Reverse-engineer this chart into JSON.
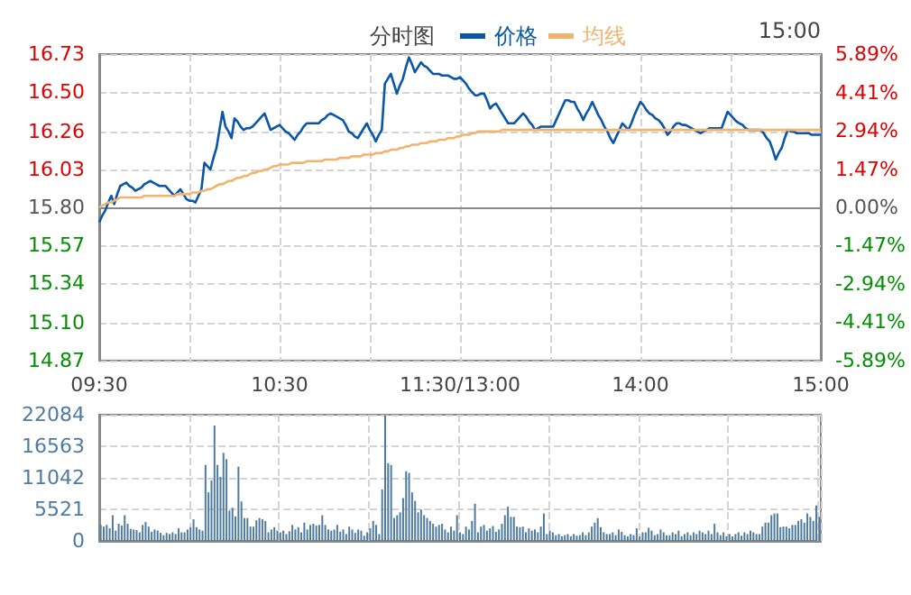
{
  "chart_data": [
    {
      "type": "line",
      "title": "分时图",
      "annotations": [
        "15:00"
      ],
      "legend": "top",
      "grid": true,
      "marker": "none",
      "line_style": "solid",
      "categories": [
        "09:30",
        null,
        null,
        null,
        null,
        null,
        null,
        null,
        null,
        null,
        null,
        null,
        null,
        null,
        null,
        null,
        null,
        null,
        null,
        null,
        null,
        null,
        null,
        null,
        null,
        null,
        null,
        null,
        null,
        null,
        null,
        null,
        null,
        null,
        null,
        null,
        null,
        null,
        null,
        null,
        null,
        null,
        null,
        null,
        null,
        null,
        null,
        null,
        null,
        null,
        null,
        null,
        null,
        null,
        null,
        null,
        null,
        null,
        null,
        null,
        "10:30",
        null,
        null,
        null,
        null,
        null,
        null,
        null,
        null,
        null,
        null,
        null,
        null,
        null,
        null,
        null,
        null,
        null,
        null,
        null,
        null,
        null,
        null,
        null,
        null,
        null,
        null,
        null,
        null,
        null,
        null,
        null,
        null,
        null,
        null,
        null,
        null,
        null,
        null,
        null,
        null,
        null,
        null,
        null,
        null,
        null,
        null,
        null,
        null,
        null,
        null,
        null,
        null,
        null,
        null,
        null,
        null,
        null,
        null,
        null,
        "11:30/13:00",
        null,
        null,
        null,
        null,
        null,
        null,
        null,
        null,
        null,
        null,
        null,
        null,
        null,
        null,
        null,
        null,
        null,
        null,
        null,
        null,
        null,
        null,
        null,
        null,
        null,
        null,
        null,
        null,
        null,
        null,
        null,
        null,
        null,
        null,
        null,
        null,
        null,
        null,
        null,
        null,
        null,
        null,
        null,
        null,
        null,
        null,
        null,
        null,
        null,
        null,
        null,
        null,
        null,
        null,
        null,
        null,
        null,
        null,
        null,
        "14:00",
        null,
        null,
        null,
        null,
        null,
        null,
        null,
        null,
        null,
        null,
        null,
        null,
        null,
        null,
        null,
        null,
        null,
        null,
        null,
        null,
        null,
        null,
        null,
        null,
        null,
        null,
        null,
        null,
        null,
        null,
        null,
        null,
        null,
        null,
        null,
        null,
        null,
        null,
        null,
        null,
        null,
        null,
        null,
        null,
        null,
        null,
        null,
        null,
        null,
        null,
        null,
        null,
        null,
        null,
        null,
        null,
        null,
        null,
        null,
        "15:00"
      ],
      "ylim": [
        14.87,
        16.73
      ],
      "yticks": [
        14.87,
        {
          "value": 15.1,
          "label": "15.10"
        },
        15.34,
        15.57,
        {
          "value": 15.8,
          "label": "15.80"
        },
        16.03,
        16.26,
        {
          "value": 16.5,
          "label": "16.50"
        },
        16.73
      ],
      "y2lim": [
        -5.89,
        5.89
      ],
      "y2ticks": [
        {
          "value": -5.89,
          "label": "-5.89%"
        },
        {
          "value": -4.41,
          "label": "-4.41%"
        },
        {
          "value": -2.94,
          "label": "-2.94%"
        },
        {
          "value": -1.47,
          "label": "-1.47%"
        },
        {
          "value": 0,
          "label": "0.00%"
        },
        {
          "value": 1.47,
          "label": "1.47%"
        },
        {
          "value": 2.94,
          "label": "2.94%"
        },
        {
          "value": 4.41,
          "label": "4.41%"
        },
        {
          "value": 5.89,
          "label": "5.89%"
        }
      ],
      "series": [
        {
          "name": "价格",
          "color": "#0a56a8",
          "values": [
            15.71,
            15.75,
            15.78,
            15.83,
            15.87,
            15.82,
            15.88,
            15.93,
            15.94,
            15.95,
            15.93,
            15.92,
            15.9,
            15.91,
            15.92,
            15.94,
            15.95,
            15.96,
            15.95,
            15.94,
            15.93,
            15.93,
            15.93,
            15.91,
            15.89,
            15.87,
            15.89,
            15.91,
            15.88,
            15.85,
            15.84,
            15.84,
            15.83,
            15.87,
            15.91,
            16.07,
            16.05,
            16.03,
            16.1,
            16.16,
            16.27,
            16.38,
            16.29,
            16.26,
            16.22,
            16.34,
            16.32,
            16.29,
            16.27,
            16.28,
            16.28,
            16.29,
            16.31,
            16.33,
            16.35,
            16.37,
            16.32,
            16.27,
            16.28,
            16.29,
            16.3,
            16.28,
            16.26,
            16.25,
            16.23,
            16.21,
            16.24,
            16.26,
            16.29,
            16.31,
            16.31,
            16.31,
            16.31,
            16.31,
            16.33,
            16.34,
            16.36,
            16.37,
            16.36,
            16.35,
            16.34,
            16.33,
            16.3,
            16.26,
            16.25,
            16.23,
            16.22,
            16.25,
            16.28,
            16.31,
            16.27,
            16.24,
            16.2,
            16.24,
            16.27,
            16.55,
            16.58,
            16.61,
            16.55,
            16.49,
            16.54,
            16.58,
            16.65,
            16.71,
            16.67,
            16.62,
            16.65,
            16.68,
            16.66,
            16.65,
            16.63,
            16.61,
            16.61,
            16.61,
            16.6,
            16.6,
            16.6,
            16.59,
            16.58,
            16.58,
            16.59,
            16.57,
            16.55,
            16.52,
            16.5,
            16.48,
            16.48,
            16.49,
            16.49,
            16.45,
            16.4,
            16.42,
            16.43,
            16.4,
            16.37,
            16.34,
            16.31,
            16.31,
            16.31,
            16.33,
            16.35,
            16.37,
            16.35,
            16.32,
            16.3,
            16.27,
            16.28,
            16.29,
            16.29,
            16.29,
            16.29,
            16.29,
            16.33,
            16.37,
            16.41,
            16.45,
            16.45,
            16.44,
            16.44,
            16.4,
            16.37,
            16.33,
            16.37,
            16.4,
            16.44,
            16.4,
            16.36,
            16.33,
            16.29,
            16.26,
            16.22,
            16.19,
            16.23,
            16.27,
            16.31,
            16.29,
            16.27,
            16.31,
            16.36,
            16.4,
            16.44,
            16.42,
            16.39,
            16.37,
            16.36,
            16.34,
            16.33,
            16.31,
            16.28,
            16.24,
            16.26,
            16.29,
            16.31,
            16.31,
            16.3,
            16.3,
            16.29,
            16.28,
            16.27,
            16.26,
            16.25,
            16.26,
            16.27,
            16.28,
            16.28,
            16.28,
            16.28,
            16.28,
            16.33,
            16.38,
            16.36,
            16.34,
            16.32,
            16.31,
            16.3,
            16.28,
            16.27,
            16.27,
            16.27,
            16.27,
            16.27,
            16.25,
            16.22,
            16.2,
            16.15,
            16.09,
            16.13,
            16.16,
            16.22,
            16.27,
            16.26,
            16.26,
            16.25,
            16.25,
            16.25,
            16.25,
            16.25,
            16.24,
            16.24,
            16.24,
            16.24
          ]
        },
        {
          "name": "均线",
          "color": "#f4b36c",
          "values": [
            15.8,
            15.81,
            15.82,
            15.83,
            15.83,
            15.84,
            15.85,
            15.86,
            15.86,
            15.86,
            15.86,
            15.86,
            15.86,
            15.86,
            15.86,
            15.87,
            15.87,
            15.87,
            15.87,
            15.87,
            15.87,
            15.87,
            15.87,
            15.87,
            15.87,
            15.87,
            15.88,
            15.88,
            15.88,
            15.88,
            15.88,
            15.89,
            15.89,
            15.89,
            15.9,
            15.9,
            15.91,
            15.91,
            15.92,
            15.93,
            15.94,
            15.94,
            15.95,
            15.96,
            15.96,
            15.97,
            15.98,
            15.98,
            15.99,
            15.99,
            16,
            16.01,
            16.01,
            16.02,
            16.02,
            16.03,
            16.03,
            16.04,
            16.05,
            16.05,
            16.06,
            16.06,
            16.06,
            16.06,
            16.07,
            16.07,
            16.07,
            16.07,
            16.07,
            16.08,
            16.08,
            16.08,
            16.08,
            16.08,
            16.08,
            16.09,
            16.09,
            16.09,
            16.09,
            16.09,
            16.1,
            16.1,
            16.1,
            16.1,
            16.11,
            16.11,
            16.11,
            16.11,
            16.12,
            16.12,
            16.12,
            16.12,
            16.13,
            16.13,
            16.13,
            16.14,
            16.14,
            16.15,
            16.15,
            16.15,
            16.16,
            16.16,
            16.17,
            16.17,
            16.18,
            16.18,
            16.18,
            16.19,
            16.19,
            16.19,
            16.2,
            16.2,
            16.2,
            16.21,
            16.21,
            16.21,
            16.22,
            16.22,
            16.22,
            16.23,
            16.23,
            16.24,
            16.24,
            16.24,
            16.25,
            16.25,
            16.26,
            16.26,
            16.26,
            16.26,
            16.26,
            16.26,
            16.26,
            16.26,
            16.27,
            16.27,
            16.27,
            16.27,
            16.27,
            16.27,
            16.27,
            16.27,
            16.27,
            16.27,
            16.27,
            16.27,
            16.27,
            16.27,
            16.27,
            16.27,
            16.27,
            16.27,
            16.27,
            16.27,
            16.27,
            16.27,
            16.27,
            16.27,
            16.27,
            16.27,
            16.27,
            16.27,
            16.27,
            16.27,
            16.27,
            16.27,
            16.27,
            16.27,
            16.27,
            16.27,
            16.27,
            16.27,
            16.27,
            16.27,
            16.27,
            16.27,
            16.27,
            16.27,
            16.27,
            16.27,
            16.27,
            16.27,
            16.27,
            16.27,
            16.27,
            16.27,
            16.27,
            16.27,
            16.27,
            16.27,
            16.27,
            16.27,
            16.27,
            16.27,
            16.27,
            16.27,
            16.27,
            16.27,
            16.27,
            16.27,
            16.27,
            16.27,
            16.27,
            16.27,
            16.27,
            16.27,
            16.27,
            16.27,
            16.27,
            16.27,
            16.27,
            16.27,
            16.27,
            16.27,
            16.27,
            16.27,
            16.27,
            16.27,
            16.27,
            16.27,
            16.27,
            16.27,
            16.27,
            16.27,
            16.27,
            16.27,
            16.27,
            16.27,
            16.27,
            16.27,
            16.27,
            16.27,
            16.27,
            16.27,
            16.27,
            16.27,
            16.27,
            16.27,
            16.27,
            16.27,
            16.27
          ]
        }
      ]
    },
    {
      "type": "bar",
      "color": "#4f7ba0",
      "grid": true,
      "tick_labels": "y",
      "ylim": [
        0,
        22084
      ],
      "yticks": [
        0,
        5521,
        11042,
        16563,
        22084
      ],
      "categories": [
        null,
        null,
        null,
        null,
        null,
        null,
        null,
        null,
        null,
        null,
        null,
        null,
        null,
        null,
        null,
        null,
        null,
        null,
        null,
        null,
        null,
        null,
        null,
        null,
        null,
        null,
        null,
        null,
        null,
        null,
        null,
        null,
        null,
        null,
        null,
        null,
        null,
        null,
        null,
        null,
        null,
        null,
        null,
        null,
        null,
        null,
        null,
        null,
        null,
        null,
        null,
        null,
        null,
        null,
        null,
        null,
        null,
        null,
        null,
        null,
        null,
        null,
        null,
        null,
        null,
        null,
        null,
        null,
        null,
        null,
        null,
        null,
        null,
        null,
        null,
        null,
        null,
        null,
        null,
        null,
        null,
        null,
        null,
        null,
        null,
        null,
        null,
        null,
        null,
        null,
        null,
        null,
        null,
        null,
        null,
        null,
        null,
        null,
        null,
        null,
        null,
        null,
        null,
        null,
        null,
        null,
        null,
        null,
        null,
        null,
        null,
        null,
        null,
        null,
        null,
        null,
        null,
        null,
        null,
        null,
        null,
        null,
        null,
        null,
        null,
        null,
        null,
        null,
        null,
        null,
        null,
        null,
        null,
        null,
        null,
        null,
        null,
        null,
        null,
        null,
        null,
        null,
        null,
        null,
        null,
        null,
        null,
        null,
        null,
        null,
        null,
        null,
        null,
        null,
        null,
        null,
        null,
        null,
        null,
        null,
        null,
        null,
        null,
        null,
        null,
        null,
        null,
        null,
        null,
        null,
        null,
        null,
        null,
        null,
        null,
        null,
        null,
        null,
        null,
        null,
        null,
        null,
        null,
        null,
        null,
        null,
        null,
        null,
        null,
        null,
        null,
        null,
        null,
        null,
        null,
        null,
        null,
        null,
        null,
        null,
        null,
        null,
        null,
        null,
        null,
        null,
        null,
        null,
        null,
        null,
        null,
        null,
        null,
        null,
        null,
        null,
        null,
        null,
        null,
        null,
        null,
        null,
        null,
        null,
        null,
        null,
        null,
        null,
        null,
        null,
        null,
        null,
        null,
        null,
        null,
        null,
        null,
        null,
        null,
        null,
        null
      ],
      "values": [
        2800,
        2500,
        2800,
        2200,
        4500,
        1800,
        3000,
        2700,
        4500,
        3000,
        2100,
        2000,
        1900,
        1500,
        2800,
        3300,
        2500,
        1600,
        2000,
        1800,
        1400,
        1000,
        1400,
        1200,
        1500,
        1200,
        2200,
        1500,
        1500,
        2000,
        2400,
        3800,
        2400,
        2000,
        1800,
        13300,
        8500,
        10600,
        20200,
        13300,
        11200,
        15400,
        14300,
        5300,
        5800,
        4300,
        13000,
        6900,
        4000,
        4000,
        2500,
        2500,
        3600,
        4000,
        3800,
        3500,
        1500,
        2000,
        2400,
        1800,
        1500,
        1800,
        1200,
        1700,
        2800,
        2000,
        2400,
        1500,
        3200,
        2000,
        2800,
        3000,
        2700,
        2800,
        4500,
        2800,
        2000,
        1800,
        2000,
        2800,
        1600,
        2000,
        1200,
        2500,
        2000,
        1400,
        2000,
        1800,
        900,
        1500,
        2200,
        3500,
        2800,
        1200,
        9000,
        22000,
        13600,
        13300,
        4000,
        4500,
        5000,
        7500,
        12200,
        11900,
        8500,
        7000,
        5000,
        5500,
        4500,
        4000,
        3500,
        3000,
        2500,
        2800,
        3000,
        2000,
        1500,
        2500,
        1800,
        4500,
        1500,
        1200,
        2500,
        2000,
        3500,
        6500,
        1500,
        2500,
        2800,
        1800,
        2200,
        2600,
        1600,
        2000,
        3000,
        4500,
        6000,
        4200,
        4200,
        2500,
        2400,
        2500,
        1500,
        2200,
        1800,
        2000,
        1500,
        2500,
        4800,
        1200,
        1800,
        1500,
        1000,
        1200,
        800,
        1000,
        1200,
        800,
        1200,
        900,
        1000,
        1500,
        1000,
        1500,
        2500,
        3200,
        4000,
        2400,
        1500,
        1200,
        1200,
        1500,
        1000,
        2000,
        1600,
        1000,
        800,
        1200,
        1000,
        2200,
        800,
        1500,
        1500,
        2300,
        1800,
        1000,
        1200,
        2000,
        1500,
        1000,
        1000,
        1500,
        1200,
        1800,
        800,
        1200,
        1500,
        1000,
        1500,
        1200,
        1800,
        1500,
        1200,
        1800,
        1200,
        3000,
        1500,
        1000,
        1500,
        800,
        1200,
        800,
        1200,
        1500,
        900,
        1500,
        1200,
        1800,
        1500,
        1200,
        1200,
        2500,
        3200,
        3200,
        4500,
        4800,
        4800,
        2400,
        2500,
        2500,
        2200,
        2800,
        2800,
        3500,
        3800,
        3200,
        4800,
        4200,
        3500,
        6200,
        4200
      ]
    }
  ]
}
